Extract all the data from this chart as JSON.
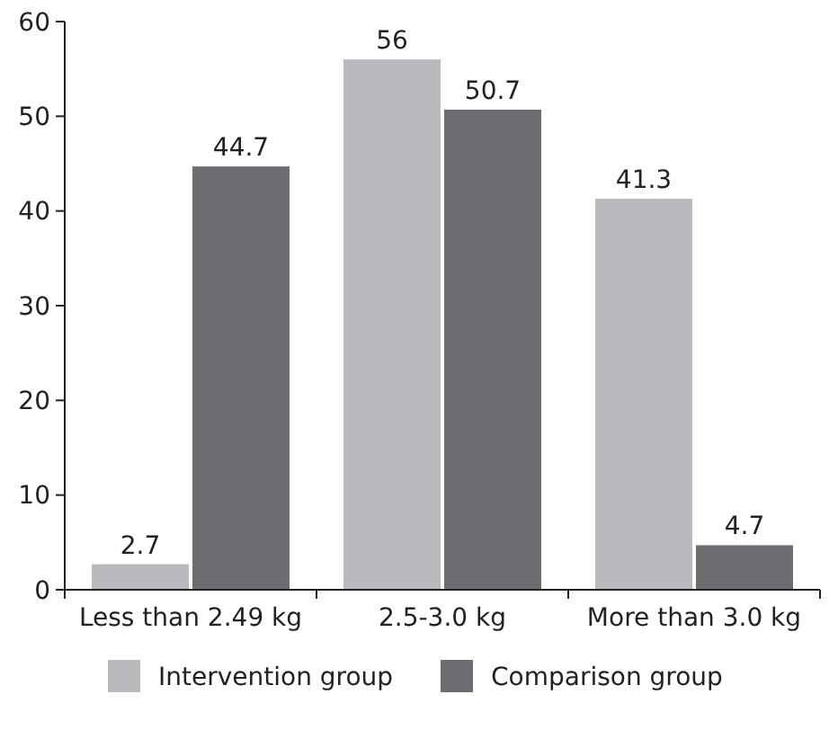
{
  "chart_data": {
    "type": "bar",
    "categories": [
      "Less than 2.49 kg",
      "2.5-3.0 kg",
      "More than 3.0 kg"
    ],
    "series": [
      {
        "name": "Intervention group",
        "color": "#b9babe",
        "values": [
          2.7,
          56,
          41.3
        ]
      },
      {
        "name": "Comparison group",
        "color": "#6c6d71",
        "values": [
          44.7,
          50.7,
          4.7
        ]
      }
    ],
    "ylim": [
      0,
      60
    ],
    "yticks": [
      0,
      10,
      20,
      30,
      40,
      50,
      60
    ],
    "grid": false,
    "legend": "bottom",
    "data_labels": true
  }
}
